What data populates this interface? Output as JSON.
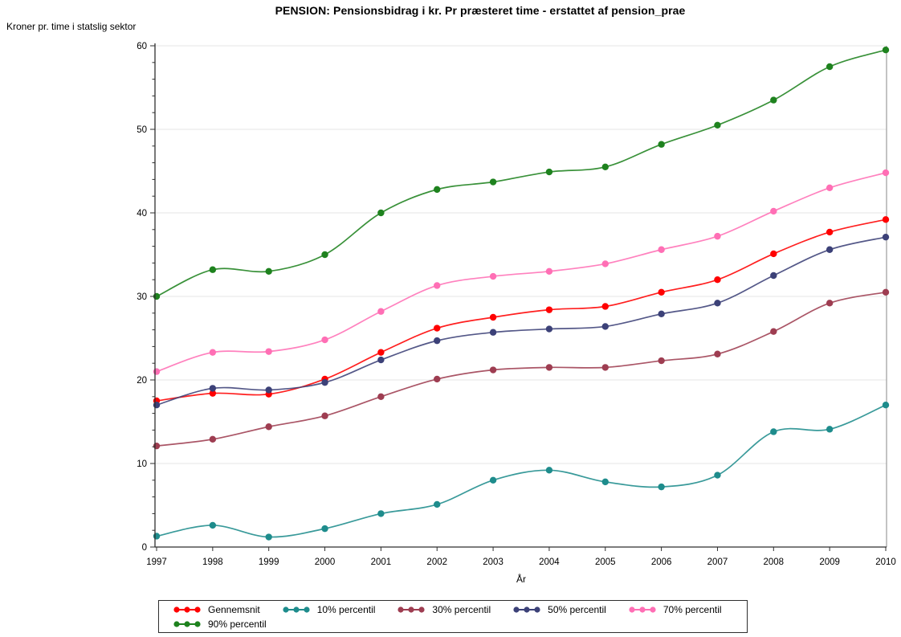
{
  "chart_data": {
    "type": "line",
    "title": "PENSION: Pensionsbidrag i kr. Pr præsteret time - erstattet af pension_prae",
    "ylabel": "Kroner pr. time i statslig sektor",
    "xlabel": "År",
    "x": [
      1997,
      1998,
      1999,
      2000,
      2001,
      2002,
      2003,
      2004,
      2005,
      2006,
      2007,
      2008,
      2009,
      2010
    ],
    "ylim": [
      0,
      60
    ],
    "yticks": [
      0,
      10,
      20,
      30,
      40,
      50,
      60
    ],
    "y_minor_step": 2,
    "grid": true,
    "legend_position": "bottom",
    "series": [
      {
        "name": "Gennemsnit",
        "color": "#FF0000",
        "values": [
          17.5,
          18.4,
          18.3,
          20.1,
          23.3,
          26.2,
          27.5,
          28.4,
          28.8,
          30.5,
          32.0,
          35.1,
          37.7,
          39.2
        ]
      },
      {
        "name": "10% percentil",
        "color": "#1E8C8C",
        "values": [
          1.3,
          2.6,
          1.2,
          2.2,
          4.0,
          5.1,
          8.0,
          9.2,
          7.8,
          7.2,
          8.6,
          13.8,
          14.1,
          17.0
        ]
      },
      {
        "name": "30% percentil",
        "color": "#9E3D51",
        "values": [
          12.1,
          12.9,
          14.4,
          15.7,
          18.0,
          20.1,
          21.2,
          21.5,
          21.5,
          22.3,
          23.1,
          25.8,
          29.2,
          30.5
        ]
      },
      {
        "name": "50% percentil",
        "color": "#3C4178",
        "values": [
          17.0,
          19.0,
          18.8,
          19.7,
          22.4,
          24.7,
          25.7,
          26.1,
          26.4,
          27.9,
          29.2,
          32.5,
          35.6,
          37.1
        ]
      },
      {
        "name": "70% percentil",
        "color": "#FF6FB5",
        "values": [
          21.0,
          23.3,
          23.4,
          24.8,
          28.2,
          31.3,
          32.4,
          33.0,
          33.9,
          35.6,
          37.2,
          40.2,
          43.0,
          44.8
        ]
      },
      {
        "name": "90% percentil",
        "color": "#1E821E",
        "values": [
          30.0,
          33.2,
          33.0,
          35.0,
          40.0,
          42.8,
          43.7,
          44.9,
          45.5,
          48.2,
          50.5,
          53.5,
          57.5,
          59.5
        ]
      }
    ]
  }
}
